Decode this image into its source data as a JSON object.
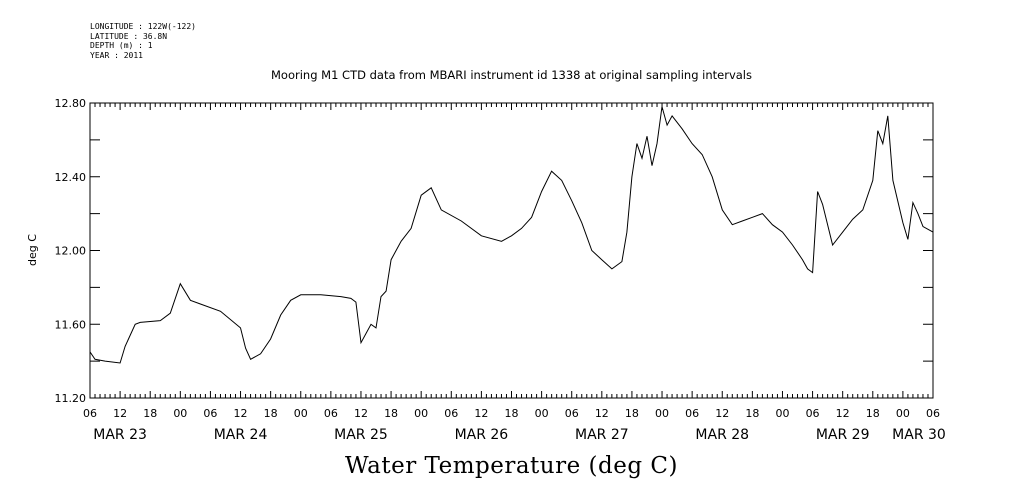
{
  "header": {
    "meta_lines": [
      "LONGITUDE : 122W(-122)",
      "LATITUDE : 36.8N",
      "DEPTH (m) : 1",
      "YEAR : 2011"
    ],
    "title": "Mooring M1 CTD data from MBARI instrument id 1338 at original sampling intervals"
  },
  "chart_data": {
    "type": "line",
    "title": "Mooring M1 CTD data from MBARI instrument id 1338 at original sampling intervals",
    "xlabel": "Water Temperature (deg C)",
    "ylabel": "deg C",
    "ylim": [
      11.2,
      12.8
    ],
    "yticks": [
      "12.80",
      "12.40",
      "12.00",
      "11.60",
      "11.20"
    ],
    "xlim_hours_label": "MAR 23 06 to MAR 30 06",
    "hour_ticks": [
      "06",
      "12",
      "18",
      "00",
      "06",
      "12",
      "18",
      "00",
      "06",
      "12",
      "18",
      "00",
      "06",
      "12",
      "18",
      "00",
      "06",
      "12",
      "18",
      "00",
      "06",
      "12",
      "18",
      "00",
      "06",
      "12",
      "18",
      "00",
      "06"
    ],
    "day_labels": [
      "MAR 23",
      "MAR 24",
      "MAR 25",
      "MAR 26",
      "MAR 27",
      "MAR 28",
      "MAR 29",
      "MAR 30"
    ],
    "grid": false,
    "series": [
      {
        "x": [
          "03-23 06:00",
          "03-23 07:00",
          "03-23 09:00",
          "03-23 12:00",
          "03-23 13:00",
          "03-23 15:00",
          "03-23 16:00",
          "03-23 20:00",
          "03-23 22:00",
          "03-24 00:00",
          "03-24 02:00",
          "03-24 04:00",
          "03-24 08:00",
          "03-24 12:00",
          "03-24 13:00",
          "03-24 14:00",
          "03-24 16:00",
          "03-24 18:00",
          "03-24 20:00",
          "03-24 22:00",
          "03-25 00:00",
          "03-25 04:00",
          "03-25 08:00",
          "03-25 10:00",
          "03-25 11:00",
          "03-25 12:00",
          "03-25 13:00",
          "03-25 14:00",
          "03-25 15:00",
          "03-25 16:00",
          "03-25 17:00",
          "03-25 18:00",
          "03-25 20:00",
          "03-25 22:00",
          "03-26 00:00",
          "03-26 02:00",
          "03-26 04:00",
          "03-26 08:00",
          "03-26 12:00",
          "03-26 16:00",
          "03-26 18:00",
          "03-26 20:00",
          "03-26 22:00",
          "03-27 00:00",
          "03-27 02:00",
          "03-27 04:00",
          "03-27 06:00",
          "03-27 08:00",
          "03-27 10:00",
          "03-27 12:00",
          "03-27 14:00",
          "03-27 16:00",
          "03-27 17:00",
          "03-27 18:00",
          "03-27 19:00",
          "03-27 20:00",
          "03-27 21:00",
          "03-27 22:00",
          "03-27 23:00",
          "03-28 00:00",
          "03-28 01:00",
          "03-28 02:00",
          "03-28 04:00",
          "03-28 06:00",
          "03-28 08:00",
          "03-28 10:00",
          "03-28 12:00",
          "03-28 14:00",
          "03-28 16:00",
          "03-28 18:00",
          "03-28 20:00",
          "03-28 22:00",
          "03-29 00:00",
          "03-29 02:00",
          "03-29 04:00",
          "03-29 05:00",
          "03-29 06:00",
          "03-29 07:00",
          "03-29 08:00",
          "03-29 10:00",
          "03-29 12:00",
          "03-29 14:00",
          "03-29 16:00",
          "03-29 18:00",
          "03-29 19:00",
          "03-29 20:00",
          "03-29 21:00",
          "03-29 22:00",
          "03-30 00:00",
          "03-30 01:00",
          "03-30 02:00",
          "03-30 03:00",
          "03-30 04:00",
          "03-30 06:00"
        ],
        "values": [
          11.45,
          11.41,
          11.4,
          11.39,
          11.48,
          11.6,
          11.61,
          11.62,
          11.66,
          11.82,
          11.73,
          11.71,
          11.67,
          11.58,
          11.47,
          11.41,
          11.44,
          11.52,
          11.65,
          11.73,
          11.76,
          11.76,
          11.75,
          11.74,
          11.72,
          11.5,
          11.55,
          11.6,
          11.58,
          11.75,
          11.78,
          11.95,
          12.05,
          12.12,
          12.3,
          12.34,
          12.22,
          12.16,
          12.08,
          12.05,
          12.08,
          12.12,
          12.18,
          12.32,
          12.43,
          12.38,
          12.27,
          12.15,
          12.0,
          11.95,
          11.9,
          11.94,
          12.1,
          12.4,
          12.58,
          12.5,
          12.62,
          12.46,
          12.58,
          12.78,
          12.68,
          12.73,
          12.66,
          12.58,
          12.52,
          12.4,
          12.22,
          12.14,
          12.16,
          12.18,
          12.2,
          12.14,
          12.1,
          12.03,
          11.95,
          11.9,
          11.88,
          12.32,
          12.25,
          12.03,
          12.1,
          12.17,
          12.22,
          12.38,
          12.65,
          12.58,
          12.73,
          12.38,
          12.15,
          12.06,
          12.26,
          12.2,
          12.13,
          12.1
        ]
      }
    ]
  }
}
